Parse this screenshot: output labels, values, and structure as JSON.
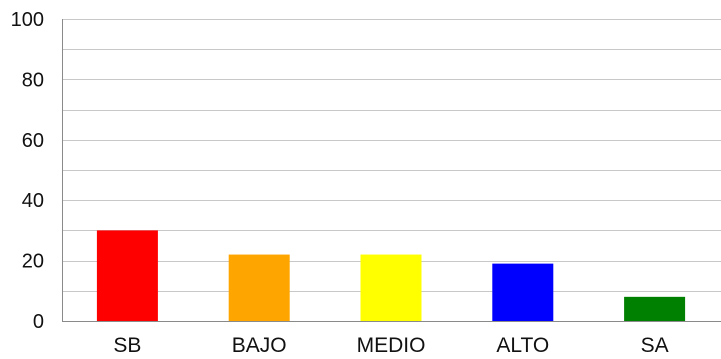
{
  "chart_data": {
    "type": "bar",
    "categories": [
      "SB",
      "BAJO",
      "MEDIO",
      "ALTO",
      "SA"
    ],
    "values": [
      30,
      22,
      22,
      19,
      8
    ],
    "colors": [
      "#ff0000",
      "#ffa500",
      "#ffff00",
      "#0000ff",
      "#008000"
    ],
    "title": "",
    "xlabel": "",
    "ylabel": "",
    "ylim": [
      0,
      100
    ],
    "major_ticks": [
      0,
      20,
      40,
      60,
      80,
      100
    ],
    "minor_grid_step": 10,
    "grid": true,
    "legend": "none"
  }
}
